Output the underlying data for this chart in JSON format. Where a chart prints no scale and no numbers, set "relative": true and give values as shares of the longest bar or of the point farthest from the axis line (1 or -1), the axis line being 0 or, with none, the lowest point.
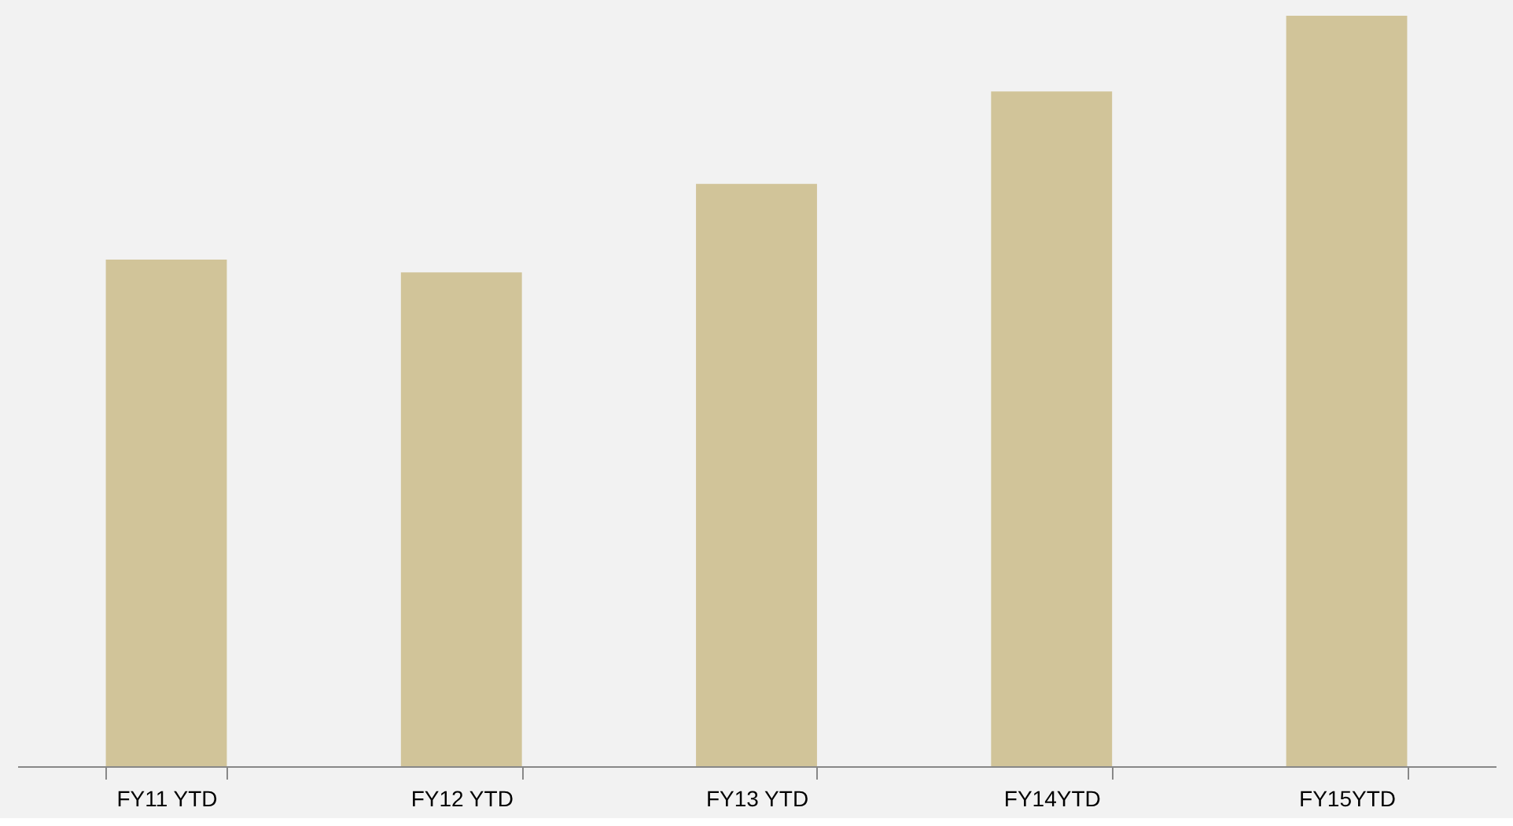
{
  "chart_data": {
    "type": "bar",
    "relative": true,
    "categories": [
      "FY11 YTD",
      "FY12 YTD",
      "FY13 YTD",
      "FY14YTD",
      "FY15YTD"
    ],
    "values": [
      0.675,
      0.658,
      0.776,
      0.899,
      1
    ],
    "color": "#d1c499"
  }
}
